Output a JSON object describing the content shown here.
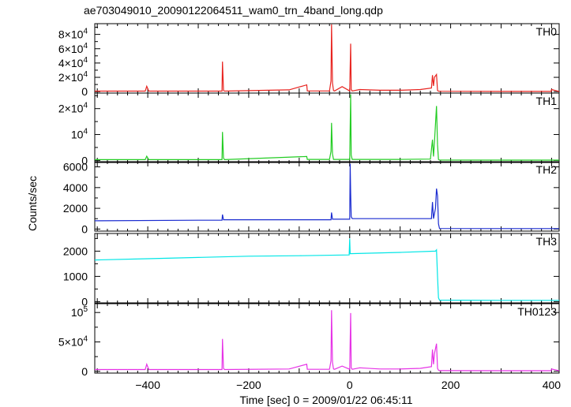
{
  "chart_data": {
    "type": "line",
    "title": "ae703049010_20090122064511_wam0_trn_4band_long.qdp",
    "xlabel": "Time [sec] 0 = 2009/01/22 06:45:11",
    "ylabel": "Counts/sec",
    "xlim": [
      -505,
      415
    ],
    "xticks": [
      -400,
      -200,
      0,
      200,
      400
    ],
    "xtick_labels": [
      "−400",
      "−200",
      "0",
      "200",
      "400"
    ],
    "panels": [
      {
        "name": "TH0",
        "color": "#e8231f",
        "ylim": [
          -2000,
          95000
        ],
        "yticks": [
          0,
          20000,
          40000,
          60000,
          80000
        ],
        "ytick_labels": [
          {
            "mant": "0",
            "exp": ""
          },
          {
            "mant": "2×10",
            "exp": "4"
          },
          {
            "mant": "4×10",
            "exp": "4"
          },
          {
            "mant": "6×10",
            "exp": "4"
          },
          {
            "mant": "8×10",
            "exp": "4"
          }
        ],
        "x": [
          -505,
          -405,
          -402,
          -398,
          -253,
          -252,
          -250,
          -248,
          -120,
          -85,
          -84,
          -40,
          -37,
          -36,
          -34,
          -32,
          -30,
          -15,
          0,
          2,
          3,
          5,
          20,
          60,
          100,
          140,
          162,
          164,
          166,
          168,
          172,
          174,
          176,
          178,
          300,
          399,
          400,
          415
        ],
        "y": [
          800,
          800,
          7500,
          800,
          800,
          42000,
          1500,
          800,
          2500,
          9500,
          1000,
          1000,
          15000,
          94000,
          12000,
          1500,
          1000,
          7000,
          1000,
          67000,
          3000,
          1000,
          3000,
          2000,
          2000,
          3000,
          5000,
          23000,
          8000,
          20000,
          24000,
          1500,
          800,
          500,
          300,
          300,
          3000,
          300
        ]
      },
      {
        "name": "TH1",
        "color": "#22cc22",
        "ylim": [
          -800,
          26000
        ],
        "yticks": [
          0,
          10000,
          20000
        ],
        "ytick_labels": [
          {
            "mant": "0",
            "exp": ""
          },
          {
            "mant": "10",
            "exp": "4"
          },
          {
            "mant": "2×10",
            "exp": "4"
          }
        ],
        "x": [
          -505,
          -405,
          -402,
          -398,
          -253,
          -252,
          -250,
          -248,
          -85,
          -84,
          -40,
          -37,
          -36,
          -34,
          -32,
          0,
          2,
          3,
          5,
          100,
          160,
          164,
          166,
          168,
          172,
          174,
          176,
          178,
          300,
          415
        ],
        "y": [
          300,
          300,
          1600,
          300,
          300,
          11000,
          900,
          300,
          1500,
          400,
          400,
          3500,
          14500,
          2500,
          400,
          400,
          25500,
          2000,
          400,
          400,
          500,
          8000,
          1500,
          7000,
          21000,
          6000,
          400,
          150,
          100,
          100
        ]
      },
      {
        "name": "TH2",
        "color": "#1a2bd0",
        "ylim": [
          -200,
          6500
        ],
        "yticks": [
          0,
          2000,
          4000,
          6000
        ],
        "ytick_labels": [
          {
            "mant": "0",
            "exp": ""
          },
          {
            "mant": "2000",
            "exp": ""
          },
          {
            "mant": "4000",
            "exp": ""
          },
          {
            "mant": "6000",
            "exp": ""
          }
        ],
        "x": [
          -505,
          -300,
          -253,
          -252,
          -250,
          -100,
          -37,
          -36,
          -34,
          0,
          1,
          2,
          3,
          5,
          60,
          150,
          162,
          164,
          166,
          170,
          172,
          174,
          176,
          178,
          300,
          415
        ],
        "y": [
          800,
          850,
          850,
          1400,
          900,
          900,
          900,
          1600,
          950,
          950,
          6300,
          3500,
          1200,
          1000,
          1000,
          1000,
          1000,
          2600,
          1000,
          2000,
          3900,
          3200,
          500,
          50,
          40,
          40
        ]
      },
      {
        "name": "TH3",
        "color": "#00e6e6",
        "ylim": [
          -50,
          2700
        ],
        "yticks": [
          0,
          1000,
          2000
        ],
        "ytick_labels": [
          {
            "mant": "0",
            "exp": ""
          },
          {
            "mant": "1000",
            "exp": ""
          },
          {
            "mant": "2000",
            "exp": ""
          }
        ],
        "x": [
          -505,
          -400,
          -300,
          -200,
          -100,
          -1,
          0,
          1,
          100,
          170,
          172,
          174,
          176,
          178,
          300,
          415
        ],
        "y": [
          1650,
          1700,
          1750,
          1800,
          1820,
          1850,
          2500,
          1900,
          1950,
          2000,
          2050,
          1000,
          150,
          60,
          50,
          50
        ]
      },
      {
        "name": "TH0123",
        "color": "#e632e6",
        "ylim": [
          -3000,
          115000
        ],
        "yticks": [
          0,
          50000,
          100000
        ],
        "ytick_labels": [
          {
            "mant": "0",
            "exp": ""
          },
          {
            "mant": "5×10",
            "exp": "4"
          },
          {
            "mant": "10",
            "exp": "5"
          }
        ],
        "x": [
          -505,
          -405,
          -402,
          -398,
          -253,
          -252,
          -250,
          -248,
          -120,
          -85,
          -84,
          -40,
          -37,
          -36,
          -34,
          -32,
          -30,
          -15,
          0,
          2,
          3,
          5,
          20,
          60,
          100,
          140,
          162,
          164,
          166,
          168,
          172,
          174,
          176,
          178,
          300,
          399,
          400,
          415
        ],
        "y": [
          3000,
          3000,
          12000,
          3000,
          3000,
          55000,
          5000,
          3000,
          4000,
          12000,
          3500,
          3500,
          18000,
          104000,
          15000,
          4000,
          3500,
          9000,
          3500,
          99000,
          6000,
          3500,
          6000,
          4000,
          4000,
          5000,
          8000,
          37000,
          12000,
          30000,
          47000,
          5000,
          2000,
          1200,
          1000,
          1000,
          4000,
          1000
        ]
      }
    ]
  }
}
